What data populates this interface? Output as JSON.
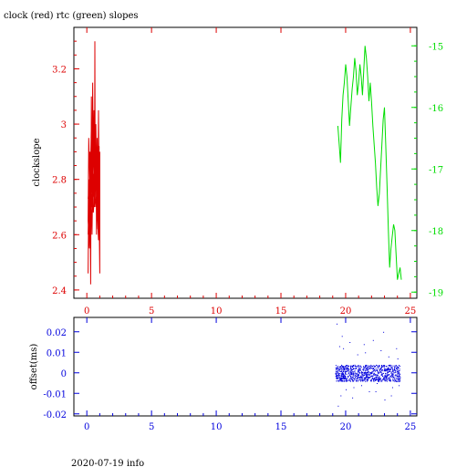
{
  "title": "clock (red) rtc (green) slopes",
  "footer": "2020-07-19 info",
  "colors": {
    "red": "#dd0000",
    "green": "#00dd00",
    "blue": "#0000dd",
    "axis": "#000000"
  },
  "chart_data": [
    {
      "type": "line",
      "title": "clock (red) rtc (green) slopes",
      "ylabel": "clockslope",
      "xlabel": "",
      "xlim": [
        -1,
        25.5
      ],
      "ylim": [
        2.37,
        3.35
      ],
      "y2lim": [
        -19.1,
        -14.7
      ],
      "xticks": [
        0,
        5,
        10,
        15,
        20,
        25
      ],
      "yticks": [
        2.4,
        2.6,
        2.8,
        3,
        3.2
      ],
      "ytick_labels": [
        "2.4",
        "2.6",
        "2.8",
        "3",
        "3.2"
      ],
      "y2ticks": [
        -19,
        -18,
        -17,
        -16,
        -15
      ],
      "y2tick_labels": [
        "-19",
        "-18",
        "-17",
        "-16",
        "-15"
      ],
      "grid": false,
      "series": [
        {
          "axis": "left",
          "color": "#dd0000",
          "x": [
            0.1,
            0.15,
            0.2,
            0.25,
            0.3,
            0.35,
            0.4,
            0.45,
            0.5,
            0.55,
            0.6,
            0.62,
            0.65,
            0.7,
            0.75,
            0.8,
            0.85,
            0.9,
            0.95,
            1.0,
            1.0,
            0.9,
            0.8,
            0.7,
            0.6,
            0.5,
            0.4,
            0.3,
            0.2,
            0.1,
            0.15,
            0.25,
            0.35,
            0.45,
            0.55,
            0.65,
            0.75,
            0.85,
            0.95,
            0.9,
            0.7,
            0.5,
            0.3,
            0.15,
            0.1,
            0.3,
            0.5,
            0.7,
            0.9,
            1.0,
            0.8,
            0.6,
            0.4,
            0.2,
            0.1
          ],
          "y": [
            2.46,
            2.75,
            2.58,
            2.9,
            2.42,
            3.1,
            2.7,
            3.15,
            2.85,
            3.05,
            2.8,
            3.3,
            2.72,
            3.0,
            2.6,
            2.95,
            2.7,
            3.05,
            2.75,
            2.9,
            2.46,
            2.85,
            2.65,
            3.0,
            2.7,
            2.95,
            2.6,
            2.8,
            2.55,
            2.65,
            2.95,
            2.75,
            3.0,
            2.85,
            2.7,
            2.9,
            2.78,
            2.62,
            2.92,
            2.58,
            2.8,
            2.68,
            2.88,
            2.72,
            2.6,
            2.65,
            2.82,
            2.7,
            2.95,
            2.62,
            2.75,
            2.85,
            2.7,
            2.8,
            2.73
          ]
        },
        {
          "axis": "right",
          "color": "#00dd00",
          "x": [
            19.4,
            19.5,
            19.6,
            19.7,
            19.8,
            19.9,
            20.0,
            20.1,
            20.2,
            20.3,
            20.4,
            20.5,
            20.6,
            20.7,
            20.8,
            20.9,
            21.0,
            21.1,
            21.2,
            21.3,
            21.4,
            21.5,
            21.6,
            21.7,
            21.8,
            21.9,
            22.0,
            22.1,
            22.2,
            22.3,
            22.4,
            22.5,
            22.6,
            22.7,
            22.8,
            22.9,
            23.0,
            23.1,
            23.2,
            23.3,
            23.4,
            23.5,
            23.6,
            23.7,
            23.8,
            23.9,
            24.0,
            24.1,
            24.2,
            24.3
          ],
          "y": [
            -16.3,
            -16.6,
            -16.9,
            -16.2,
            -15.8,
            -15.6,
            -15.3,
            -15.5,
            -15.9,
            -16.3,
            -16.0,
            -15.7,
            -15.5,
            -15.2,
            -15.4,
            -15.8,
            -15.6,
            -15.3,
            -15.5,
            -15.8,
            -15.4,
            -15.0,
            -15.2,
            -15.5,
            -15.9,
            -15.6,
            -15.9,
            -16.3,
            -16.6,
            -16.9,
            -17.3,
            -17.6,
            -17.4,
            -17.0,
            -16.6,
            -16.2,
            -16.0,
            -16.6,
            -17.3,
            -18.0,
            -18.6,
            -18.3,
            -18.1,
            -17.9,
            -18.0,
            -18.4,
            -18.8,
            -18.7,
            -18.6,
            -18.8
          ]
        }
      ]
    },
    {
      "type": "scatter",
      "ylabel": "offset(ms)",
      "xlabel": "",
      "xlim": [
        -1,
        25.5
      ],
      "ylim": [
        -0.021,
        0.027
      ],
      "xticks": [
        0,
        5,
        10,
        15,
        20,
        25
      ],
      "yticks": [
        -0.02,
        -0.01,
        0,
        0.01,
        0.02
      ],
      "ytick_labels": [
        "-0.02",
        "-0.01",
        "0",
        "0.01",
        "0.02"
      ],
      "grid": false,
      "series": [
        {
          "color": "#0000dd",
          "x_range": [
            19.2,
            24.2
          ],
          "band": [
            -0.004,
            0.004
          ],
          "x": [
            19.3,
            19.4,
            19.5,
            19.6,
            19.8,
            20.0,
            20.3,
            20.6,
            20.9,
            21.2,
            21.5,
            21.8,
            22.1,
            22.4,
            22.7,
            23.0,
            23.3,
            23.6,
            23.9,
            24.1,
            19.7,
            20.5,
            21.4,
            22.3,
            22.9,
            23.5,
            24.0
          ],
          "y": [
            0.024,
            -0.016,
            0.013,
            -0.011,
            0.012,
            -0.008,
            0.015,
            -0.007,
            0.009,
            -0.006,
            0.01,
            -0.009,
            0.016,
            -0.005,
            0.011,
            -0.013,
            0.008,
            -0.007,
            0.012,
            -0.006,
            0.018,
            -0.012,
            0.014,
            -0.009,
            0.02,
            -0.011,
            0.007
          ]
        }
      ]
    }
  ]
}
